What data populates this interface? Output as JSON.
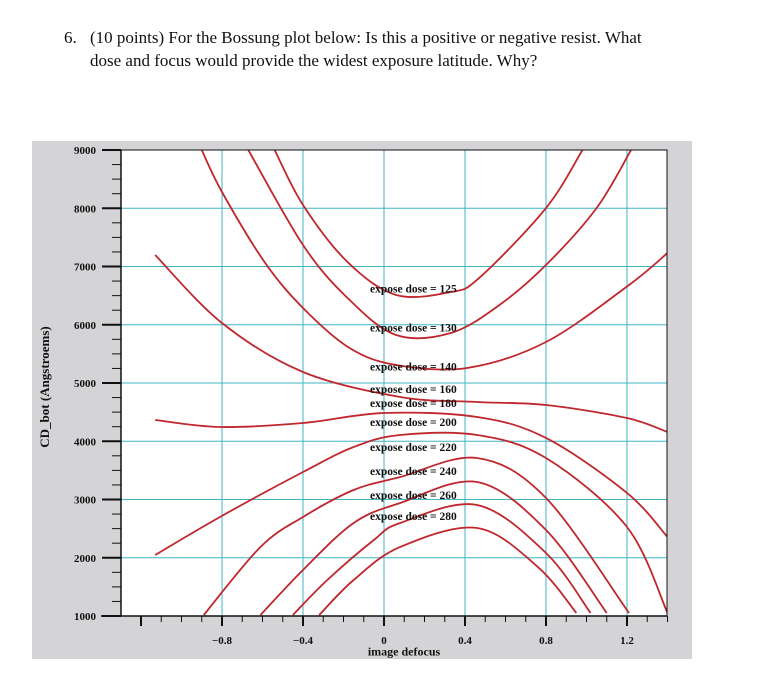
{
  "question": {
    "number": "6.",
    "line1": "(10 points) For the Bossung plot below:  Is this a positive or negative resist.  What",
    "line2": "dose and focus would provide the widest exposure latitude.  Why?"
  },
  "colors": {
    "figure_background": "#d4d4d6",
    "plot_background": "#ffffff",
    "gridline": "#3fb6c4",
    "curve": "#c0272d",
    "axis": "#111111"
  },
  "chart_data": {
    "type": "line",
    "title": "",
    "xlabel": "image defocus",
    "ylabel": "CD_bot (Angstroems)",
    "xlim": [
      -1.3,
      1.4
    ],
    "ylim": [
      1000,
      9000
    ],
    "xticks": [
      -0.8,
      -0.4,
      0,
      0.4,
      0.8,
      1.2
    ],
    "xtick_labels": [
      "-0.8",
      "-0.4",
      "0",
      "0.4",
      "0.8",
      "1.2"
    ],
    "yticks": [
      1000,
      2000,
      3000,
      4000,
      5000,
      6000,
      7000,
      8000,
      9000
    ],
    "ytick_labels": [
      "1000",
      "2000",
      "3000",
      "4000",
      "5000",
      "6000",
      "7000",
      "8000",
      "9000"
    ],
    "grid": true,
    "legend": "inline labels near center",
    "series": [
      {
        "name": "expose dose = 125",
        "label_y": 6620,
        "x": [
          -0.54,
          -0.4,
          -0.18,
          0.06,
          0.33,
          0.47,
          0.8,
          0.98
        ],
        "y": [
          9000,
          8056,
          7077,
          6511,
          6562,
          6803,
          8004,
          9000
        ]
      },
      {
        "name": "expose dose = 130",
        "label_y": 5950,
        "x": [
          -0.67,
          -0.4,
          -0.18,
          0.06,
          0.33,
          0.57,
          0.8,
          1.05,
          1.22
        ],
        "y": [
          9000,
          7369,
          6459,
          5824,
          5858,
          6339,
          7026,
          8004,
          9000
        ]
      },
      {
        "name": "expose dose = 140",
        "label_y": 5280,
        "x": [
          -0.9,
          -0.8,
          -0.59,
          -0.4,
          -0.17,
          0.06,
          0.41,
          0.8,
          1.21,
          1.4
        ],
        "y": [
          9000,
          8279,
          7077,
          6288,
          5601,
          5309,
          5258,
          5704,
          6683,
          7232
        ]
      },
      {
        "name": "expose dose = 160",
        "label_y": 4900,
        "x": [
          -1.13,
          -0.8,
          -0.4,
          0.08,
          0.46,
          0.8,
          1.2,
          1.4
        ],
        "y": [
          7197,
          6030,
          5189,
          4760,
          4674,
          4622,
          4399,
          4159
        ]
      },
      {
        "name": "expose dose = 180",
        "label_y": 4660,
        "x": [
          -1.13,
          -0.81,
          -0.4,
          0.0,
          0.46,
          0.8,
          1.2,
          1.4
        ],
        "y": [
          4365,
          4245,
          4313,
          4485,
          4416,
          4056,
          3112,
          2356
        ]
      },
      {
        "name": "expose dose = 200",
        "label_y": 4330,
        "x": [
          -1.13,
          -0.81,
          -0.4,
          -0.15,
          0.08,
          0.46,
          0.8,
          1.2,
          1.4
        ],
        "y": [
          2047,
          2700,
          3472,
          3901,
          4107,
          4107,
          3712,
          2528,
          1052
        ]
      },
      {
        "name": "expose dose = 220",
        "label_y": 3900,
        "x": [
          -0.89,
          -0.61,
          -0.4,
          -0.15,
          0.08,
          0.46,
          0.8,
          1.21
        ],
        "y": [
          1017,
          2185,
          2700,
          3163,
          3386,
          3712,
          3026,
          1052
        ]
      },
      {
        "name": "expose dose = 240",
        "label_y": 3490,
        "x": [
          -0.61,
          -0.4,
          -0.15,
          0.08,
          0.46,
          0.8,
          1.1
        ],
        "y": [
          1017,
          1790,
          2597,
          2940,
          3300,
          2476,
          1052
        ]
      },
      {
        "name": "expose dose = 260",
        "label_y": 3080,
        "x": [
          -0.45,
          -0.28,
          -0.05,
          0.08,
          0.46,
          0.8,
          1.02
        ],
        "y": [
          1017,
          1618,
          2305,
          2597,
          2906,
          2082,
          1052
        ]
      },
      {
        "name": "expose dose = 280",
        "label_y": 2720,
        "x": [
          -0.32,
          -0.15,
          0.08,
          0.46,
          0.76,
          0.95
        ],
        "y": [
          1017,
          1618,
          2185,
          2511,
          1841,
          1052
        ]
      }
    ]
  }
}
